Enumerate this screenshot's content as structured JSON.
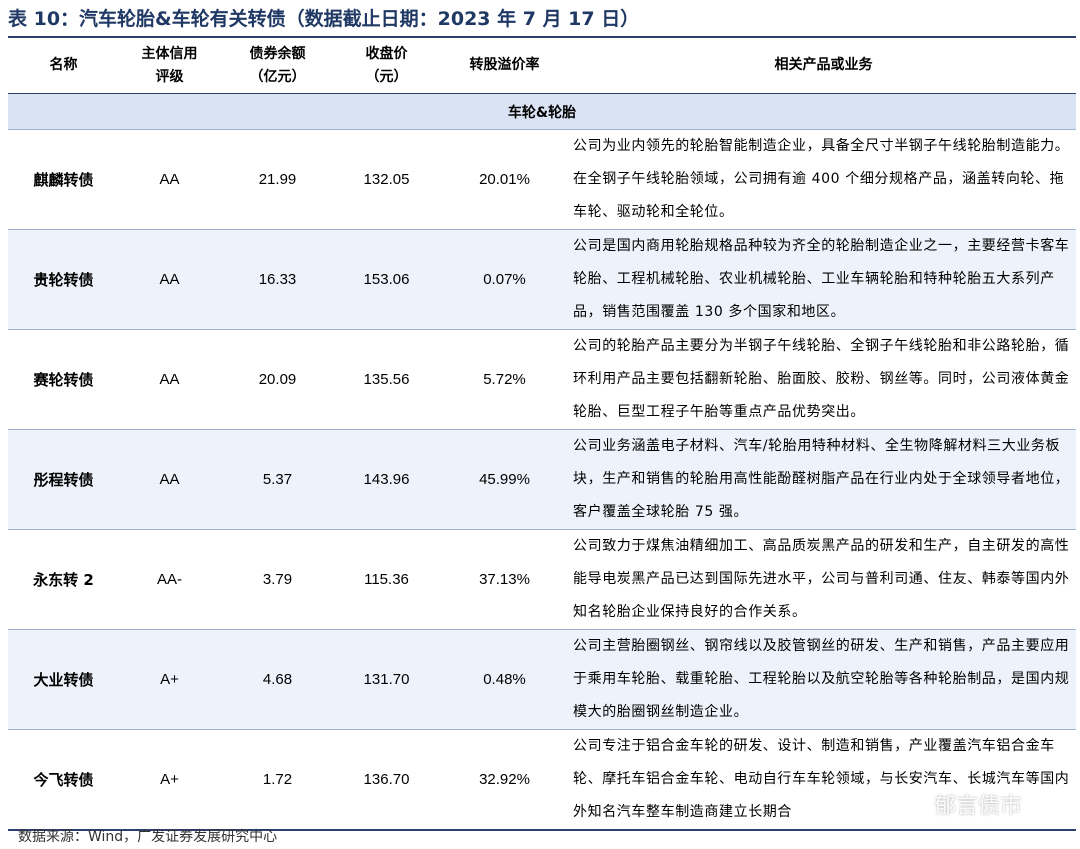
{
  "title": "表 10：汽车轮胎&车轮有关转债（数据截止日期：2023 年 7 月 17 日）",
  "headers": {
    "name": "名称",
    "rating": [
      "主体信用",
      "评级"
    ],
    "balance": [
      "债券余额",
      "（亿元）"
    ],
    "close": [
      "收盘价",
      "（元）"
    ],
    "premium": "转股溢价率",
    "business": "相关产品或业务"
  },
  "section": "车轮&轮胎",
  "rows": [
    {
      "name": "麒麟转债",
      "rating": "AA",
      "balance": "21.99",
      "close": "132.05",
      "premium": "20.01%",
      "business": "公司为业内领先的轮胎智能制造企业，具备全尺寸半钢子午线轮胎制造能力。在全钢子午线轮胎领域，公司拥有逾 400 个细分规格产品，涵盖转向轮、拖车轮、驱动轮和全轮位。"
    },
    {
      "name": "贵轮转债",
      "rating": "AA",
      "balance": "16.33",
      "close": "153.06",
      "premium": "0.07%",
      "business": "公司是国内商用轮胎规格品种较为齐全的轮胎制造企业之一，主要经营卡客车轮胎、工程机械轮胎、农业机械轮胎、工业车辆轮胎和特种轮胎五大系列产品，销售范围覆盖 130 多个国家和地区。"
    },
    {
      "name": "赛轮转债",
      "rating": "AA",
      "balance": "20.09",
      "close": "135.56",
      "premium": "5.72%",
      "business": "公司的轮胎产品主要分为半钢子午线轮胎、全钢子午线轮胎和非公路轮胎，循环利用产品主要包括翻新轮胎、胎面胶、胶粉、钢丝等。同时，公司液体黄金轮胎、巨型工程子午胎等重点产品优势突出。"
    },
    {
      "name": "彤程转债",
      "rating": "AA",
      "balance": "5.37",
      "close": "143.96",
      "premium": "45.99%",
      "business": "公司业务涵盖电子材料、汽车/轮胎用特种材料、全生物降解材料三大业务板块，生产和销售的轮胎用高性能酚醛树脂产品在行业内处于全球领导者地位，客户覆盖全球轮胎 75 强。"
    },
    {
      "name": "永东转 2",
      "rating": "AA-",
      "balance": "3.79",
      "close": "115.36",
      "premium": "37.13%",
      "business": "公司致力于煤焦油精细加工、高品质炭黑产品的研发和生产，自主研发的高性能导电炭黑产品已达到国际先进水平，公司与普利司通、住友、韩泰等国内外知名轮胎企业保持良好的合作关系。"
    },
    {
      "name": "大业转债",
      "rating": "A+",
      "balance": "4.68",
      "close": "131.70",
      "premium": "0.48%",
      "business": "公司主营胎圈钢丝、钢帘线以及胶管钢丝的研发、生产和销售，产品主要应用于乘用车轮胎、载重轮胎、工程轮胎以及航空轮胎等各种轮胎制品，是国内规模大的胎圈钢丝制造企业。"
    },
    {
      "name": "今飞转债",
      "rating": "A+",
      "balance": "1.72",
      "close": "136.70",
      "premium": "32.92%",
      "business": "公司专注于铝合金车轮的研发、设计、制造和销售，产业覆盖汽车铝合金车轮、摩托车铝合金车轮、电动自行车车轮领域，与长安汽车、长城汽车等国内外知名汽车整车制造商建立长期合"
    }
  ],
  "source": "数据来源：Wind，广发证券发展研究中心",
  "watermark": "郁言债市"
}
